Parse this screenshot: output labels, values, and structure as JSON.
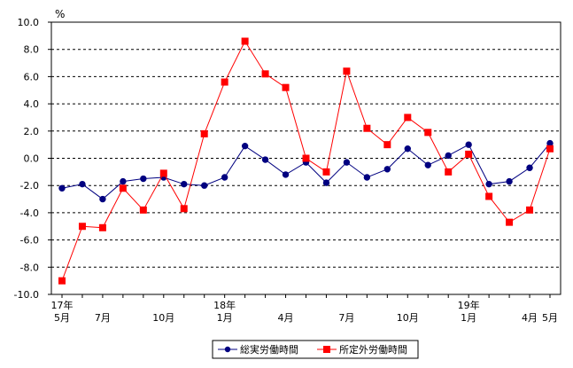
{
  "chart_data": {
    "type": "line",
    "unit_label": "%",
    "ylim": [
      -10.0,
      10.0
    ],
    "y_ticks": [
      "10.0",
      "8.0",
      "6.0",
      "4.0",
      "2.0",
      "0.0",
      "-2.0",
      "-4.0",
      "-6.0",
      "-8.0",
      "-10.0"
    ],
    "grid": "horizontal dashed",
    "legend_position": "bottom-center",
    "x_labels": [
      {
        "index": 0,
        "top": "17年",
        "bottom": "5月"
      },
      {
        "index": 2,
        "top": "",
        "bottom": "7月"
      },
      {
        "index": 5,
        "top": "",
        "bottom": "10月"
      },
      {
        "index": 8,
        "top": "18年",
        "bottom": "1月"
      },
      {
        "index": 11,
        "top": "",
        "bottom": "4月"
      },
      {
        "index": 14,
        "top": "",
        "bottom": "7月"
      },
      {
        "index": 17,
        "top": "",
        "bottom": "10月"
      },
      {
        "index": 20,
        "top": "19年",
        "bottom": "1月"
      },
      {
        "index": 23,
        "top": "",
        "bottom": "4月"
      },
      {
        "index": 24,
        "top": "",
        "bottom": "5月"
      }
    ],
    "series": [
      {
        "name": "総実労働時間",
        "color": "#000080",
        "marker": "circle",
        "values": [
          -2.2,
          -1.9,
          -3.0,
          -1.7,
          -1.5,
          -1.4,
          -1.9,
          -2.0,
          -1.4,
          0.9,
          -0.1,
          -1.2,
          -0.3,
          -1.8,
          -0.3,
          -1.4,
          -0.8,
          0.7,
          -0.5,
          0.2,
          1.0,
          -1.9,
          -1.7,
          -0.7,
          1.1
        ]
      },
      {
        "name": "所定外労働時間",
        "color": "#ff0000",
        "marker": "square",
        "values": [
          -9.0,
          -5.0,
          -5.1,
          -2.2,
          -3.8,
          -1.1,
          -3.7,
          1.8,
          5.6,
          8.6,
          6.2,
          5.2,
          0.0,
          -1.0,
          6.4,
          2.2,
          1.0,
          3.0,
          1.9,
          -1.0,
          0.3,
          -2.8,
          -4.7,
          -3.8,
          0.7
        ]
      }
    ]
  }
}
